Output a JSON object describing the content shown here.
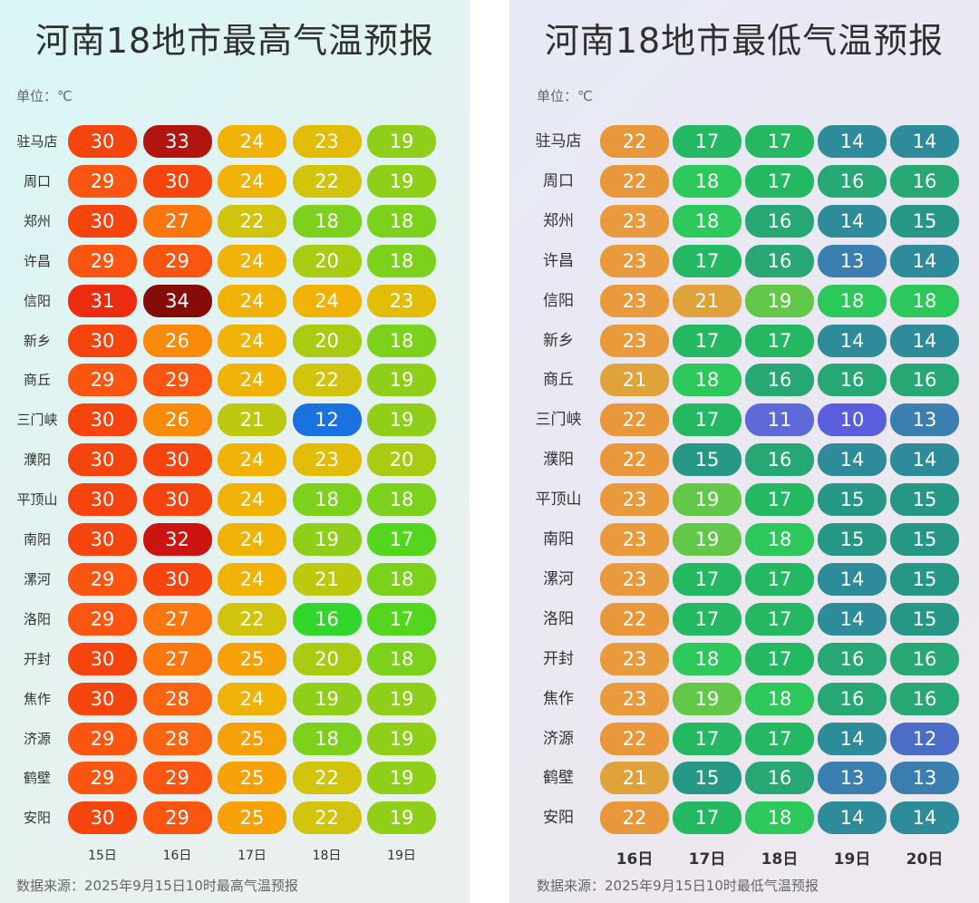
{
  "chart_data": [
    {
      "type": "table",
      "title": "河南18地市最高气温预报",
      "unit": "单位：℃",
      "source": "数据来源：2025年9月15日10时最高气温预报",
      "categories": [
        "15日",
        "16日",
        "17日",
        "18日",
        "19日"
      ],
      "rows": [
        "驻马店",
        "周口",
        "郑州",
        "许昌",
        "信阳",
        "新乡",
        "商丘",
        "三门峡",
        "濮阳",
        "平顶山",
        "南阳",
        "漯河",
        "洛阳",
        "开封",
        "焦作",
        "济源",
        "鹤壁",
        "安阳"
      ],
      "values": [
        [
          30,
          33,
          24,
          23,
          19
        ],
        [
          29,
          30,
          24,
          22,
          19
        ],
        [
          30,
          27,
          22,
          18,
          18
        ],
        [
          29,
          29,
          24,
          20,
          18
        ],
        [
          31,
          34,
          24,
          24,
          23
        ],
        [
          30,
          26,
          24,
          20,
          18
        ],
        [
          29,
          29,
          24,
          22,
          19
        ],
        [
          30,
          26,
          21,
          12,
          19
        ],
        [
          30,
          30,
          24,
          23,
          20
        ],
        [
          30,
          30,
          24,
          18,
          18
        ],
        [
          30,
          32,
          24,
          19,
          17
        ],
        [
          29,
          30,
          24,
          21,
          18
        ],
        [
          29,
          27,
          22,
          16,
          17
        ],
        [
          30,
          27,
          25,
          20,
          18
        ],
        [
          30,
          28,
          24,
          19,
          19
        ],
        [
          29,
          28,
          25,
          18,
          19
        ],
        [
          29,
          29,
          25,
          22,
          19
        ],
        [
          30,
          29,
          25,
          22,
          19
        ]
      ]
    },
    {
      "type": "table",
      "title": "河南18地市最低气温预报",
      "unit": "单位：℃",
      "source": "数据来源：2025年9月15日10时最低气温预报",
      "categories": [
        "16日",
        "17日",
        "18日",
        "19日",
        "20日"
      ],
      "rows": [
        "驻马店",
        "周口",
        "郑州",
        "许昌",
        "信阳",
        "新乡",
        "商丘",
        "三门峡",
        "濮阳",
        "平顶山",
        "南阳",
        "漯河",
        "洛阳",
        "开封",
        "焦作",
        "济源",
        "鹤壁",
        "安阳"
      ],
      "values": [
        [
          22,
          17,
          17,
          14,
          14
        ],
        [
          22,
          18,
          17,
          16,
          16
        ],
        [
          23,
          18,
          16,
          14,
          15
        ],
        [
          23,
          17,
          16,
          13,
          14
        ],
        [
          23,
          21,
          19,
          18,
          18
        ],
        [
          23,
          17,
          17,
          14,
          14
        ],
        [
          21,
          18,
          16,
          16,
          16
        ],
        [
          22,
          17,
          11,
          10,
          13
        ],
        [
          22,
          15,
          16,
          14,
          14
        ],
        [
          23,
          19,
          17,
          15,
          15
        ],
        [
          23,
          19,
          18,
          15,
          15
        ],
        [
          23,
          17,
          17,
          14,
          15
        ],
        [
          22,
          17,
          17,
          14,
          15
        ],
        [
          23,
          18,
          17,
          16,
          16
        ],
        [
          23,
          19,
          18,
          16,
          16
        ],
        [
          22,
          17,
          17,
          14,
          12
        ],
        [
          21,
          15,
          16,
          13,
          13
        ],
        [
          22,
          17,
          18,
          14,
          14
        ]
      ]
    }
  ],
  "colors": {
    "max_scale": {
      "12": "#1a72e0",
      "16": "#33d62c",
      "17": "#54d61f",
      "18": "#7bd11c",
      "19": "#8fcf1a",
      "20": "#a9cc12",
      "21": "#bcc90e",
      "22": "#d2c40c",
      "23": "#e2bd08",
      "24": "#f1b206",
      "25": "#f6a106",
      "26": "#fa8a0a",
      "27": "#fb760e",
      "28": "#fb6410",
      "29": "#fb5512",
      "30": "#f6440f",
      "31": "#ec2c10",
      "32": "#cc1410",
      "33": "#b0150f",
      "34": "#860c08"
    },
    "min_scale": {
      "10": "#5a5edc",
      "11": "#5c69d6",
      "12": "#4b6cc7",
      "13": "#3a7fb0",
      "14": "#2e8c9a",
      "15": "#279785",
      "16": "#26a773",
      "17": "#23b861",
      "18": "#2cc85c",
      "19": "#63c74a",
      "21": "#e0a23a",
      "22": "#e8983a",
      "23": "#e89a3c"
    }
  }
}
